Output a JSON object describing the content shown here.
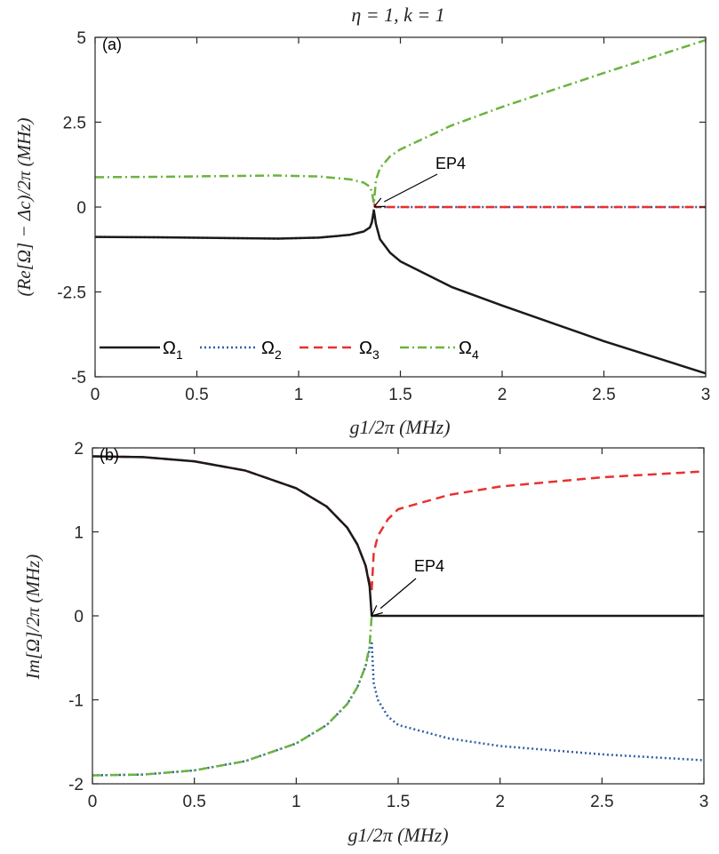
{
  "figure_title": "η = 1, k = 1",
  "chart_data": [
    {
      "type": "line",
      "panel": "(a)",
      "title": "η = 1, k = 1",
      "xlabel": "g1/2π (MHz)",
      "ylabel": "(Re[Ω] − Δc)/2π (MHz)",
      "xlim": [
        0,
        3
      ],
      "ylim": [
        -5,
        5
      ],
      "xticks": [
        0,
        0.5,
        1,
        1.5,
        2,
        2.5,
        3
      ],
      "xtick_labels": [
        "0",
        "0.5",
        "1",
        "1.5",
        "2",
        "2.5",
        "3"
      ],
      "yticks": [
        5,
        2.5,
        0,
        -2.5,
        -5
      ],
      "ytick_labels": [
        "5",
        "2.5",
        "0",
        "-2.5",
        "-5"
      ],
      "ep_x": 1.37,
      "annotation": {
        "text": "EP4",
        "x": 1.37,
        "y": 0
      },
      "legend": [
        "Ω1",
        "Ω2",
        "Ω3",
        "Ω4"
      ],
      "series": [
        {
          "name": "Ω1",
          "style": "solid",
          "color": "#1a1a1a",
          "points": [
            [
              0,
              -0.88
            ],
            [
              0.3,
              -0.89
            ],
            [
              0.6,
              -0.91
            ],
            [
              0.9,
              -0.93
            ],
            [
              1.1,
              -0.9
            ],
            [
              1.25,
              -0.82
            ],
            [
              1.32,
              -0.72
            ],
            [
              1.35,
              -0.6
            ],
            [
              1.36,
              -0.45
            ],
            [
              1.37,
              -0.1
            ],
            [
              1.38,
              -0.5
            ],
            [
              1.4,
              -0.95
            ],
            [
              1.45,
              -1.35
            ],
            [
              1.5,
              -1.6
            ],
            [
              1.75,
              -2.35
            ],
            [
              2,
              -2.9
            ],
            [
              2.5,
              -3.95
            ],
            [
              3,
              -4.9
            ]
          ]
        },
        {
          "name": "Ω2",
          "style": "dotted",
          "color": "#2f5fa8",
          "points": [
            [
              0,
              -0.88
            ],
            [
              0.3,
              -0.89
            ],
            [
              0.6,
              -0.91
            ],
            [
              0.9,
              -0.93
            ],
            [
              1.1,
              -0.9
            ],
            [
              1.25,
              -0.82
            ],
            [
              1.32,
              -0.72
            ],
            [
              1.35,
              -0.6
            ],
            [
              1.36,
              -0.45
            ],
            [
              1.37,
              -0.05
            ],
            [
              1.38,
              0
            ],
            [
              3,
              0
            ]
          ]
        },
        {
          "name": "Ω3",
          "style": "dashed",
          "color": "#e8312f",
          "points": [
            [
              1.37,
              0.1
            ],
            [
              1.38,
              0
            ],
            [
              3,
              0
            ]
          ]
        },
        {
          "name": "Ω4",
          "style": "dashdot",
          "color": "#6cb33f",
          "points": [
            [
              0,
              0.88
            ],
            [
              0.3,
              0.89
            ],
            [
              0.6,
              0.91
            ],
            [
              0.9,
              0.93
            ],
            [
              1.1,
              0.9
            ],
            [
              1.25,
              0.82
            ],
            [
              1.32,
              0.72
            ],
            [
              1.35,
              0.6
            ],
            [
              1.36,
              0.45
            ],
            [
              1.37,
              0.1
            ],
            [
              1.38,
              0.8
            ],
            [
              1.4,
              1.15
            ],
            [
              1.45,
              1.5
            ],
            [
              1.5,
              1.7
            ],
            [
              1.75,
              2.4
            ],
            [
              2,
              2.95
            ],
            [
              2.5,
              3.95
            ],
            [
              3,
              4.92
            ]
          ]
        }
      ]
    },
    {
      "type": "line",
      "panel": "(b)",
      "xlabel": "g1/2π (MHz)",
      "ylabel": "Im[Ω]/2π (MHz)",
      "xlim": [
        0,
        3
      ],
      "ylim": [
        -2,
        2
      ],
      "xticks": [
        0,
        0.5,
        1,
        1.5,
        2,
        2.5,
        3
      ],
      "xtick_labels": [
        "0",
        "0.5",
        "1",
        "1.5",
        "2",
        "2.5",
        "3"
      ],
      "yticks": [
        2,
        1,
        0,
        -1,
        -2
      ],
      "ytick_labels": [
        "2",
        "1",
        "0",
        "-1",
        "-2"
      ],
      "ep_x": 1.37,
      "annotation": {
        "text": "EP4",
        "x": 1.37,
        "y": 0
      },
      "series": [
        {
          "name": "Ω1",
          "style": "solid",
          "color": "#1a1a1a",
          "points": [
            [
              0,
              1.9
            ],
            [
              0.25,
              1.89
            ],
            [
              0.5,
              1.84
            ],
            [
              0.75,
              1.73
            ],
            [
              1,
              1.52
            ],
            [
              1.15,
              1.3
            ],
            [
              1.25,
              1.05
            ],
            [
              1.3,
              0.85
            ],
            [
              1.34,
              0.6
            ],
            [
              1.36,
              0.35
            ],
            [
              1.37,
              0
            ],
            [
              3,
              0
            ]
          ]
        },
        {
          "name": "Ω2",
          "style": "dotted",
          "color": "#2f5fa8",
          "points": [
            [
              0,
              -1.9
            ],
            [
              0.25,
              -1.89
            ],
            [
              0.5,
              -1.84
            ],
            [
              0.75,
              -1.73
            ],
            [
              1,
              -1.52
            ],
            [
              1.15,
              -1.3
            ],
            [
              1.25,
              -1.05
            ],
            [
              1.3,
              -0.85
            ],
            [
              1.34,
              -0.6
            ],
            [
              1.36,
              -0.4
            ],
            [
              1.37,
              -0.3
            ],
            [
              1.38,
              -0.8
            ],
            [
              1.4,
              -1.0
            ],
            [
              1.45,
              -1.2
            ],
            [
              1.5,
              -1.3
            ],
            [
              1.75,
              -1.46
            ],
            [
              2,
              -1.55
            ],
            [
              2.5,
              -1.65
            ],
            [
              3,
              -1.72
            ]
          ]
        },
        {
          "name": "Ω3",
          "style": "dashed",
          "color": "#e8312f",
          "points": [
            [
              0,
              1.9
            ],
            [
              0.25,
              1.89
            ],
            [
              0.5,
              1.84
            ],
            [
              0.75,
              1.73
            ],
            [
              1,
              1.52
            ],
            [
              1.15,
              1.3
            ],
            [
              1.25,
              1.05
            ],
            [
              1.3,
              0.85
            ],
            [
              1.34,
              0.6
            ],
            [
              1.36,
              0.4
            ],
            [
              1.37,
              0.3
            ],
            [
              1.38,
              0.75
            ],
            [
              1.4,
              0.95
            ],
            [
              1.45,
              1.15
            ],
            [
              1.5,
              1.27
            ],
            [
              1.75,
              1.44
            ],
            [
              2,
              1.54
            ],
            [
              2.5,
              1.65
            ],
            [
              3,
              1.72
            ]
          ]
        },
        {
          "name": "Ω4",
          "style": "dashdot",
          "color": "#6cb33f",
          "points": [
            [
              0,
              -1.9
            ],
            [
              0.25,
              -1.89
            ],
            [
              0.5,
              -1.84
            ],
            [
              0.75,
              -1.73
            ],
            [
              1,
              -1.52
            ],
            [
              1.15,
              -1.3
            ],
            [
              1.25,
              -1.05
            ],
            [
              1.3,
              -0.85
            ],
            [
              1.34,
              -0.6
            ],
            [
              1.36,
              -0.35
            ],
            [
              1.37,
              0
            ]
          ]
        }
      ]
    }
  ]
}
